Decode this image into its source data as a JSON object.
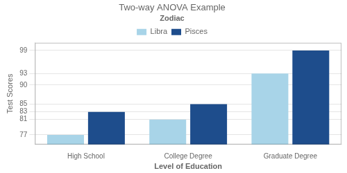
{
  "chart_data": {
    "type": "bar",
    "title": "Two-way ANOVA Example",
    "x_label": "Level of Education",
    "y_label": "Test Scores",
    "legend_title": "Zodiac",
    "categories": [
      "High School",
      "College Degree",
      "Graduate Degree"
    ],
    "series": [
      {
        "name": "Libra",
        "color": "#a8d4e8",
        "values": [
          77,
          81,
          93
        ]
      },
      {
        "name": "Pisces",
        "color": "#1e4d8c",
        "values": [
          83,
          85,
          99
        ]
      }
    ],
    "ylim": [
      74.5,
      101
    ],
    "yticks": [
      77,
      81,
      83,
      85,
      90,
      93,
      99
    ],
    "grid": true,
    "legend": "top"
  }
}
